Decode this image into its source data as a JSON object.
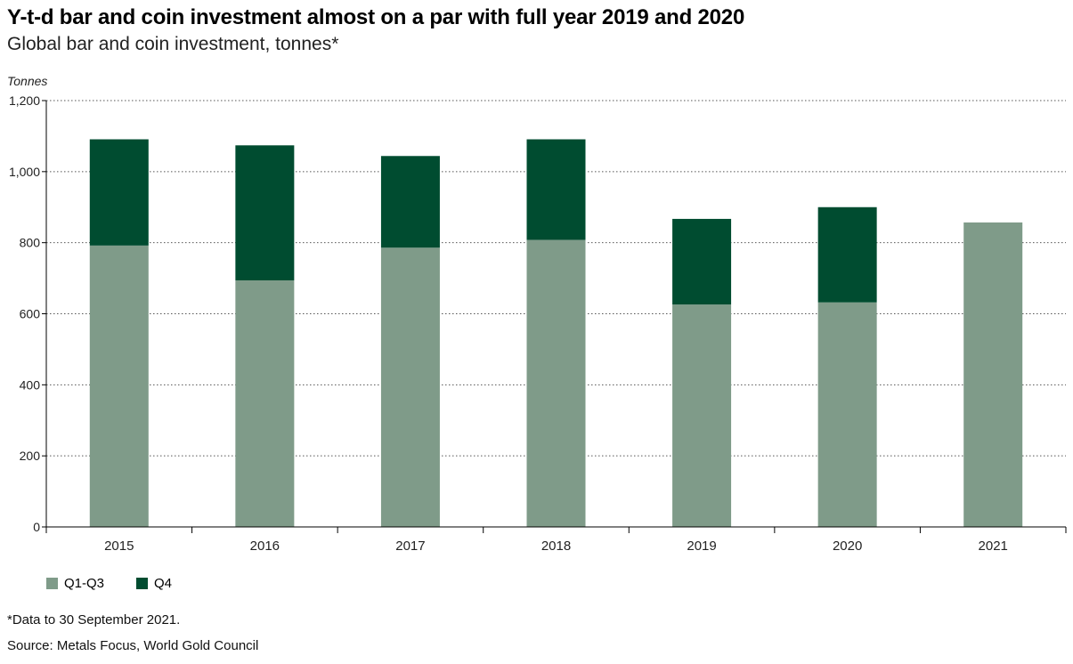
{
  "title": "Y-t-d bar and coin investment almost on a par with full year 2019 and 2020",
  "subtitle": "Global bar and coin investment, tonnes*",
  "note": "*Data to 30 September 2021.",
  "source": "Source: Metals Focus, World Gold Council",
  "colors": {
    "q1q3": "#7f9b89",
    "q4": "#004c30",
    "grid": "#555555",
    "axis": "#000000"
  },
  "chart_data": {
    "type": "bar",
    "stacked": true,
    "ylabel": "Tonnes",
    "ylim": [
      0,
      1200
    ],
    "yticks": [
      0,
      200,
      400,
      600,
      800,
      1000,
      1200
    ],
    "ytick_labels": [
      "0",
      "200",
      "400",
      "600",
      "800",
      "1,000",
      "1,200"
    ],
    "categories": [
      "2015",
      "2016",
      "2017",
      "2018",
      "2019",
      "2020",
      "2021"
    ],
    "series": [
      {
        "name": "Q1-Q3",
        "values": [
          792,
          694,
          786,
          808,
          626,
          632,
          857
        ]
      },
      {
        "name": "Q4",
        "values": [
          299,
          380,
          258,
          283,
          241,
          268,
          0
        ]
      }
    ],
    "grid": "horizontal-dotted",
    "legend": "bottom-left"
  }
}
